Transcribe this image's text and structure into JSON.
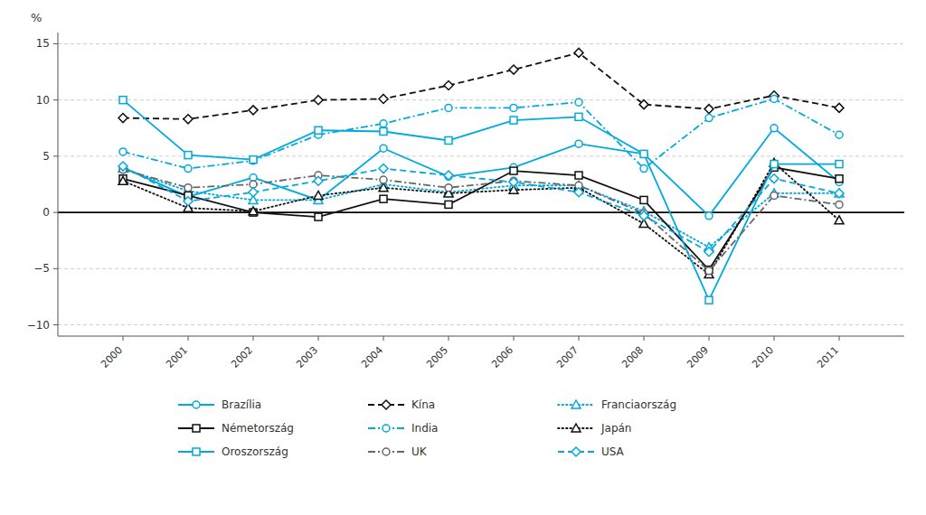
{
  "chart_data": {
    "type": "line",
    "y_label": "%",
    "x": [
      2000,
      2001,
      2002,
      2003,
      2004,
      2005,
      2006,
      2007,
      2008,
      2009,
      2010,
      2011
    ],
    "xlim": [
      1999,
      2012
    ],
    "xticks": [
      2000,
      2001,
      2002,
      2003,
      2004,
      2005,
      2006,
      2007,
      2008,
      2009,
      2010,
      2011
    ],
    "ylim": [
      -11,
      16
    ],
    "yticks": [
      {
        "value": -10,
        "label": "−10"
      },
      {
        "value": -5,
        "label": "−5"
      },
      0,
      5,
      10,
      15
    ],
    "grid": true,
    "legend": "bottom",
    "series": [
      {
        "name": "Brazília",
        "color": "#00aadd",
        "marker": "circle",
        "line_style": "solid",
        "values": [
          4.0,
          1.4,
          3.1,
          1.1,
          5.7,
          3.2,
          4.0,
          6.1,
          5.2,
          -0.3,
          7.5,
          2.7
        ]
      },
      {
        "name": "Kína",
        "color": "#111111",
        "marker": "diamond",
        "line_style": "dashed",
        "values": [
          8.4,
          8.3,
          9.1,
          10.0,
          10.1,
          11.3,
          12.7,
          14.2,
          9.6,
          9.2,
          10.4,
          9.3
        ]
      },
      {
        "name": "Franciaország",
        "color": "#00aadd",
        "marker": "triangle",
        "line_style": "dotted",
        "values": [
          3.9,
          1.9,
          1.1,
          1.1,
          2.5,
          1.8,
          2.4,
          2.4,
          0.1,
          -3.1,
          1.7,
          1.7
        ]
      },
      {
        "name": "Németország",
        "color": "#111111",
        "marker": "square",
        "line_style": "solid",
        "values": [
          3.0,
          1.5,
          0.0,
          -0.4,
          1.2,
          0.7,
          3.7,
          3.3,
          1.1,
          -5.1,
          4.0,
          3.0
        ]
      },
      {
        "name": "India",
        "color": "#00aadd",
        "marker": "circle",
        "line_style": "dashdot",
        "values": [
          5.4,
          3.9,
          4.6,
          6.9,
          7.9,
          9.3,
          9.3,
          9.8,
          3.9,
          8.4,
          10.1,
          6.9
        ]
      },
      {
        "name": "Japán",
        "color": "#111111",
        "marker": "triangle",
        "line_style": "dotted",
        "values": [
          2.8,
          0.4,
          0.1,
          1.5,
          2.2,
          1.7,
          2.0,
          2.2,
          -1.0,
          -5.5,
          4.4,
          -0.7
        ]
      },
      {
        "name": "Oroszország",
        "color": "#00aadd",
        "marker": "square",
        "line_style": "solid",
        "values": [
          10.0,
          5.1,
          4.7,
          7.3,
          7.2,
          6.4,
          8.2,
          8.5,
          5.2,
          -7.8,
          4.3,
          4.3
        ]
      },
      {
        "name": "UK",
        "color": "#666666",
        "marker": "circle",
        "line_style": "dashdot",
        "values": [
          3.8,
          2.2,
          2.5,
          3.3,
          2.9,
          2.2,
          2.8,
          2.4,
          -0.1,
          -5.2,
          1.5,
          0.7
        ]
      },
      {
        "name": "USA",
        "color": "#00aadd",
        "marker": "diamond",
        "line_style": "dashed",
        "values": [
          4.1,
          1.0,
          1.8,
          2.8,
          3.9,
          3.3,
          2.7,
          1.8,
          -0.3,
          -3.5,
          3.0,
          1.7
        ]
      }
    ]
  }
}
